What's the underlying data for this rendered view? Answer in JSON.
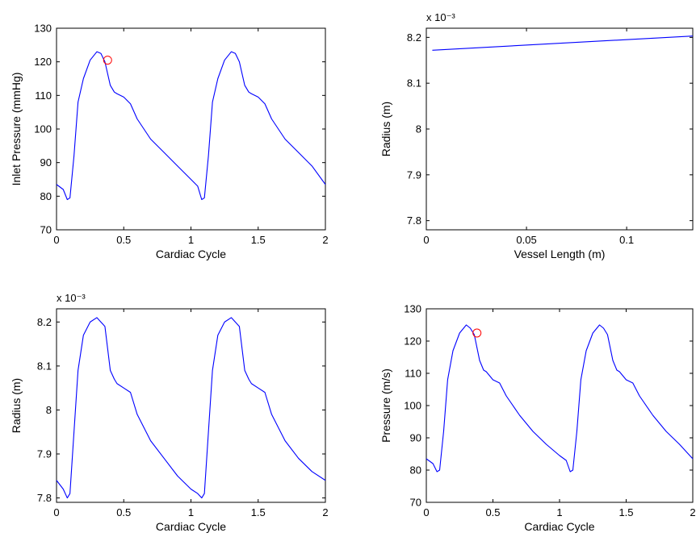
{
  "chart_data": [
    {
      "type": "line",
      "xlabel": "Cardiac Cycle",
      "ylabel": "Inlet Pressure (mmHg)",
      "xlim": [
        0,
        2
      ],
      "ylim": [
        70,
        130
      ],
      "xticks": [
        0,
        0.5,
        1,
        1.5,
        2
      ],
      "yticks": [
        70,
        80,
        90,
        100,
        110,
        120,
        130
      ],
      "xtick_labels": [
        "0",
        "0.5",
        "1",
        "1.5",
        "2"
      ],
      "ytick_labels": [
        "70",
        "80",
        "90",
        "100",
        "110",
        "120",
        "130"
      ],
      "exponent_label": "",
      "line_color": "#0000ff",
      "marker_color": "#ff0000",
      "series": [
        {
          "x": [
            0,
            0.05,
            0.08,
            0.1,
            0.13,
            0.16,
            0.2,
            0.25,
            0.3,
            0.33,
            0.36,
            0.4,
            0.43,
            0.45,
            0.5,
            0.55,
            0.6,
            0.7,
            0.8,
            0.9,
            1.0,
            1.05,
            1.08,
            1.1,
            1.13,
            1.16,
            1.2,
            1.25,
            1.3,
            1.33,
            1.36,
            1.4,
            1.43,
            1.45,
            1.5,
            1.55,
            1.6,
            1.7,
            1.8,
            1.9,
            2.0
          ],
          "y": [
            83.5,
            82,
            79,
            79.5,
            92,
            108,
            115,
            120.5,
            123,
            122.5,
            120,
            113,
            111,
            110.5,
            109.5,
            107.5,
            103,
            97,
            93,
            89,
            85,
            83,
            79,
            79.5,
            92,
            108,
            115,
            120.5,
            123,
            122.5,
            120,
            113,
            111,
            110.5,
            109.5,
            107.5,
            103,
            97,
            93,
            89,
            83.5
          ]
        }
      ],
      "marker": {
        "x": 0.38,
        "y": 120.5
      }
    },
    {
      "type": "line",
      "xlabel": "Vessel Length (m)",
      "ylabel": "Radius (m)",
      "xlim": [
        0,
        0.133
      ],
      "ylim": [
        7.78,
        8.22
      ],
      "xticks": [
        0,
        0.05,
        0.1
      ],
      "yticks": [
        7.8,
        7.9,
        8.0,
        8.1,
        8.2
      ],
      "xtick_labels": [
        "0",
        "0.05",
        "0.1"
      ],
      "ytick_labels": [
        "7.8",
        "7.9",
        "8",
        "8.1",
        "8.2"
      ],
      "exponent_label": "x 10⁻³",
      "line_color": "#0000ff",
      "marker_color": "#ff0000",
      "series": [
        {
          "x": [
            0.003,
            0.133
          ],
          "y": [
            8.172,
            8.203
          ]
        }
      ],
      "marker": null
    },
    {
      "type": "line",
      "xlabel": "Cardiac Cycle",
      "ylabel": "Radius (m)",
      "xlim": [
        0,
        2
      ],
      "ylim": [
        7.79,
        8.23
      ],
      "xticks": [
        0,
        0.5,
        1,
        1.5,
        2
      ],
      "yticks": [
        7.8,
        7.9,
        8.0,
        8.1,
        8.2
      ],
      "xtick_labels": [
        "0",
        "0.5",
        "1",
        "1.5",
        "2"
      ],
      "ytick_labels": [
        "7.8",
        "7.9",
        "8",
        "8.1",
        "8.2"
      ],
      "exponent_label": "x 10⁻³",
      "line_color": "#0000ff",
      "marker_color": "#ff0000",
      "series": [
        {
          "x": [
            0,
            0.05,
            0.08,
            0.1,
            0.13,
            0.16,
            0.2,
            0.25,
            0.3,
            0.33,
            0.36,
            0.4,
            0.43,
            0.45,
            0.5,
            0.55,
            0.6,
            0.7,
            0.8,
            0.9,
            1.0,
            1.05,
            1.08,
            1.1,
            1.13,
            1.16,
            1.2,
            1.25,
            1.3,
            1.33,
            1.36,
            1.4,
            1.43,
            1.45,
            1.5,
            1.55,
            1.6,
            1.7,
            1.8,
            1.9,
            2.0
          ],
          "y": [
            7.84,
            7.82,
            7.8,
            7.81,
            7.95,
            8.09,
            8.17,
            8.2,
            8.21,
            8.2,
            8.19,
            8.09,
            8.07,
            8.06,
            8.05,
            8.04,
            7.99,
            7.93,
            7.89,
            7.85,
            7.82,
            7.81,
            7.8,
            7.81,
            7.95,
            8.09,
            8.17,
            8.2,
            8.21,
            8.2,
            8.19,
            8.09,
            8.07,
            8.06,
            8.05,
            8.04,
            7.99,
            7.93,
            7.89,
            7.86,
            7.84
          ]
        }
      ],
      "marker": null
    },
    {
      "type": "line",
      "xlabel": "Cardiac Cycle",
      "ylabel": "Pressure (m/s)",
      "xlim": [
        0,
        2
      ],
      "ylim": [
        70,
        130
      ],
      "xticks": [
        0,
        0.5,
        1,
        1.5,
        2
      ],
      "yticks": [
        70,
        80,
        90,
        100,
        110,
        120,
        130
      ],
      "xtick_labels": [
        "0",
        "0.5",
        "1",
        "1.5",
        "2"
      ],
      "ytick_labels": [
        "70",
        "80",
        "90",
        "100",
        "110",
        "120",
        "130"
      ],
      "exponent_label": "",
      "line_color": "#0000ff",
      "marker_color": "#ff0000",
      "series": [
        {
          "x": [
            0,
            0.05,
            0.08,
            0.1,
            0.13,
            0.16,
            0.2,
            0.25,
            0.3,
            0.33,
            0.36,
            0.4,
            0.43,
            0.45,
            0.5,
            0.55,
            0.6,
            0.7,
            0.8,
            0.9,
            1.0,
            1.05,
            1.08,
            1.1,
            1.13,
            1.16,
            1.2,
            1.25,
            1.3,
            1.33,
            1.36,
            1.4,
            1.43,
            1.45,
            1.5,
            1.55,
            1.6,
            1.7,
            1.8,
            1.9,
            2.0
          ],
          "y": [
            83.5,
            82,
            79.5,
            80,
            92,
            108,
            117,
            122.5,
            125,
            124,
            122,
            114,
            111,
            110.5,
            108,
            107,
            103,
            97,
            92,
            88,
            84.5,
            83,
            79.5,
            80,
            92,
            108,
            117,
            122.5,
            125,
            124,
            122,
            114,
            111,
            110.5,
            108,
            107,
            103,
            97,
            92,
            88,
            83.5
          ]
        }
      ],
      "marker": {
        "x": 0.38,
        "y": 122.5
      }
    }
  ]
}
